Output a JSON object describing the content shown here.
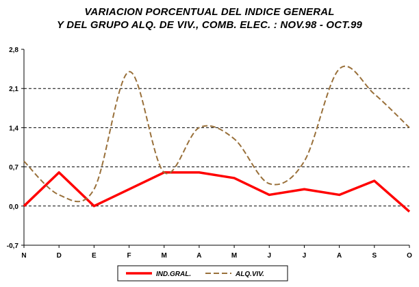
{
  "chart_data": {
    "type": "line",
    "title": "VARIACION PORCENTUAL DEL INDICE GENERAL",
    "subtitle": "Y DEL GRUPO ALQ. DE VIV., COMB.  ELEC. : NOV.98 - OCT.99",
    "categories": [
      "N",
      "D",
      "E",
      "F",
      "M",
      "A",
      "M",
      "J",
      "J",
      "A",
      "S",
      "O"
    ],
    "y_ticks": [
      "2,8",
      "2,1",
      "1,4",
      "0,7",
      "0,0",
      "-0,7"
    ],
    "ylim": [
      -0.7,
      2.8
    ],
    "grid": "horizontal dashed",
    "legend_position": "bottom",
    "series": [
      {
        "name": "IND.GRAL.",
        "color": "#ff0000",
        "style": "solid",
        "values": [
          0.0,
          0.6,
          0.0,
          0.3,
          0.6,
          0.6,
          0.5,
          0.2,
          0.3,
          0.2,
          0.45,
          -0.1
        ]
      },
      {
        "name": "ALQ.VIV.",
        "color": "#99703a",
        "style": "dashed",
        "values": [
          0.8,
          0.2,
          0.3,
          2.4,
          0.6,
          1.4,
          1.2,
          0.4,
          0.8,
          2.45,
          2.0,
          1.4
        ]
      }
    ]
  }
}
